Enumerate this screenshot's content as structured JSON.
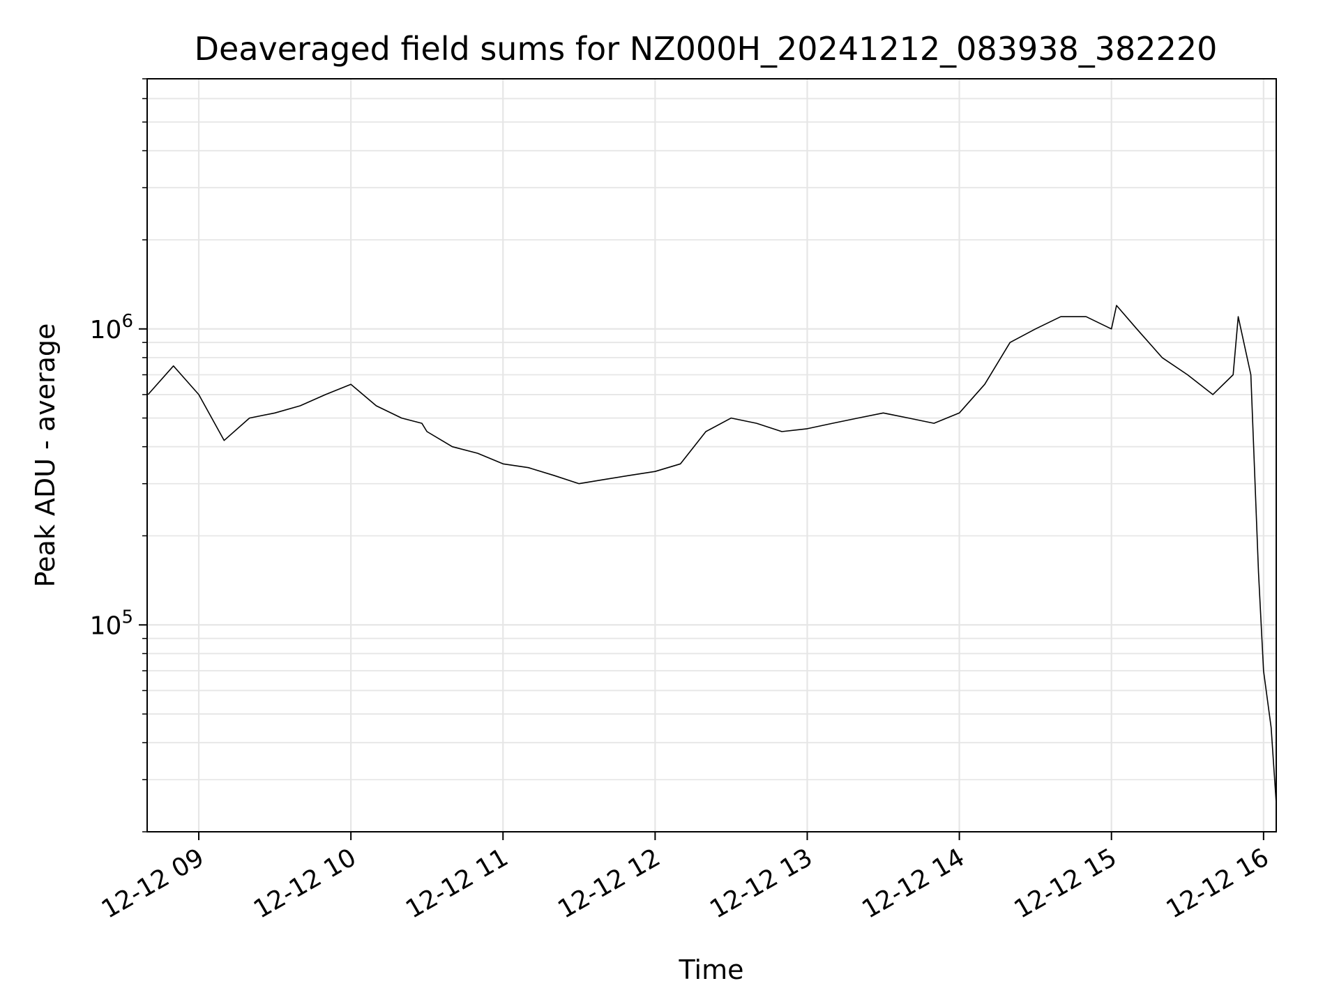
{
  "chart_data": {
    "type": "line",
    "title": "Deaveraged field sums for NZ000H_20241212_083938_382220",
    "xlabel": "Time",
    "ylabel": "Peak ADU - average",
    "yscale": "log",
    "xlim": [
      "2024-12-12 08:39:38",
      "2024-12-12 16:05:00"
    ],
    "ylim": [
      20000,
      7000000
    ],
    "grid": true,
    "line_color": "#000000",
    "grid_color": "#e6e6e6",
    "x_ticks": [
      {
        "value": "2024-12-12 09:00",
        "label": "12-12 09"
      },
      {
        "value": "2024-12-12 10:00",
        "label": "12-12 10"
      },
      {
        "value": "2024-12-12 11:00",
        "label": "12-12 11"
      },
      {
        "value": "2024-12-12 12:00",
        "label": "12-12 12"
      },
      {
        "value": "2024-12-12 13:00",
        "label": "12-12 13"
      },
      {
        "value": "2024-12-12 14:00",
        "label": "12-12 14"
      },
      {
        "value": "2024-12-12 15:00",
        "label": "12-12 15"
      },
      {
        "value": "2024-12-12 16:00",
        "label": "12-12 16"
      }
    ],
    "y_ticks": [
      {
        "value": 100000,
        "base": "10",
        "exp": "5"
      },
      {
        "value": 1000000,
        "base": "10",
        "exp": "6"
      }
    ],
    "series": [
      {
        "x": [
          "2024-12-12 08:40",
          "2024-12-12 08:50",
          "2024-12-12 09:00",
          "2024-12-12 09:10",
          "2024-12-12 09:20",
          "2024-12-12 09:30",
          "2024-12-12 09:40",
          "2024-12-12 09:50",
          "2024-12-12 10:00",
          "2024-12-12 10:10",
          "2024-12-12 10:20",
          "2024-12-12 10:28",
          "2024-12-12 10:30",
          "2024-12-12 10:40",
          "2024-12-12 10:50",
          "2024-12-12 11:00",
          "2024-12-12 11:10",
          "2024-12-12 11:20",
          "2024-12-12 11:30",
          "2024-12-12 11:40",
          "2024-12-12 11:50",
          "2024-12-12 12:00",
          "2024-12-12 12:10",
          "2024-12-12 12:20",
          "2024-12-12 12:30",
          "2024-12-12 12:40",
          "2024-12-12 12:50",
          "2024-12-12 13:00",
          "2024-12-12 13:10",
          "2024-12-12 13:20",
          "2024-12-12 13:30",
          "2024-12-12 13:40",
          "2024-12-12 13:50",
          "2024-12-12 14:00",
          "2024-12-12 14:10",
          "2024-12-12 14:20",
          "2024-12-12 14:30",
          "2024-12-12 14:40",
          "2024-12-12 14:50",
          "2024-12-12 15:00",
          "2024-12-12 15:02",
          "2024-12-12 15:10",
          "2024-12-12 15:20",
          "2024-12-12 15:30",
          "2024-12-12 15:40",
          "2024-12-12 15:48",
          "2024-12-12 15:50",
          "2024-12-12 15:55",
          "2024-12-12 15:58",
          "2024-12-12 16:00",
          "2024-12-12 16:03",
          "2024-12-12 16:05"
        ],
        "y": [
          600000,
          750000,
          600000,
          420000,
          500000,
          520000,
          550000,
          600000,
          650000,
          550000,
          500000,
          480000,
          450000,
          400000,
          380000,
          350000,
          340000,
          320000,
          300000,
          310000,
          320000,
          330000,
          350000,
          450000,
          500000,
          480000,
          450000,
          460000,
          480000,
          500000,
          520000,
          500000,
          480000,
          520000,
          650000,
          900000,
          1000000,
          1100000,
          1100000,
          1000000,
          1200000,
          1000000,
          800000,
          700000,
          600000,
          700000,
          1100000,
          700000,
          150000,
          70000,
          45000,
          25000
        ]
      }
    ]
  }
}
